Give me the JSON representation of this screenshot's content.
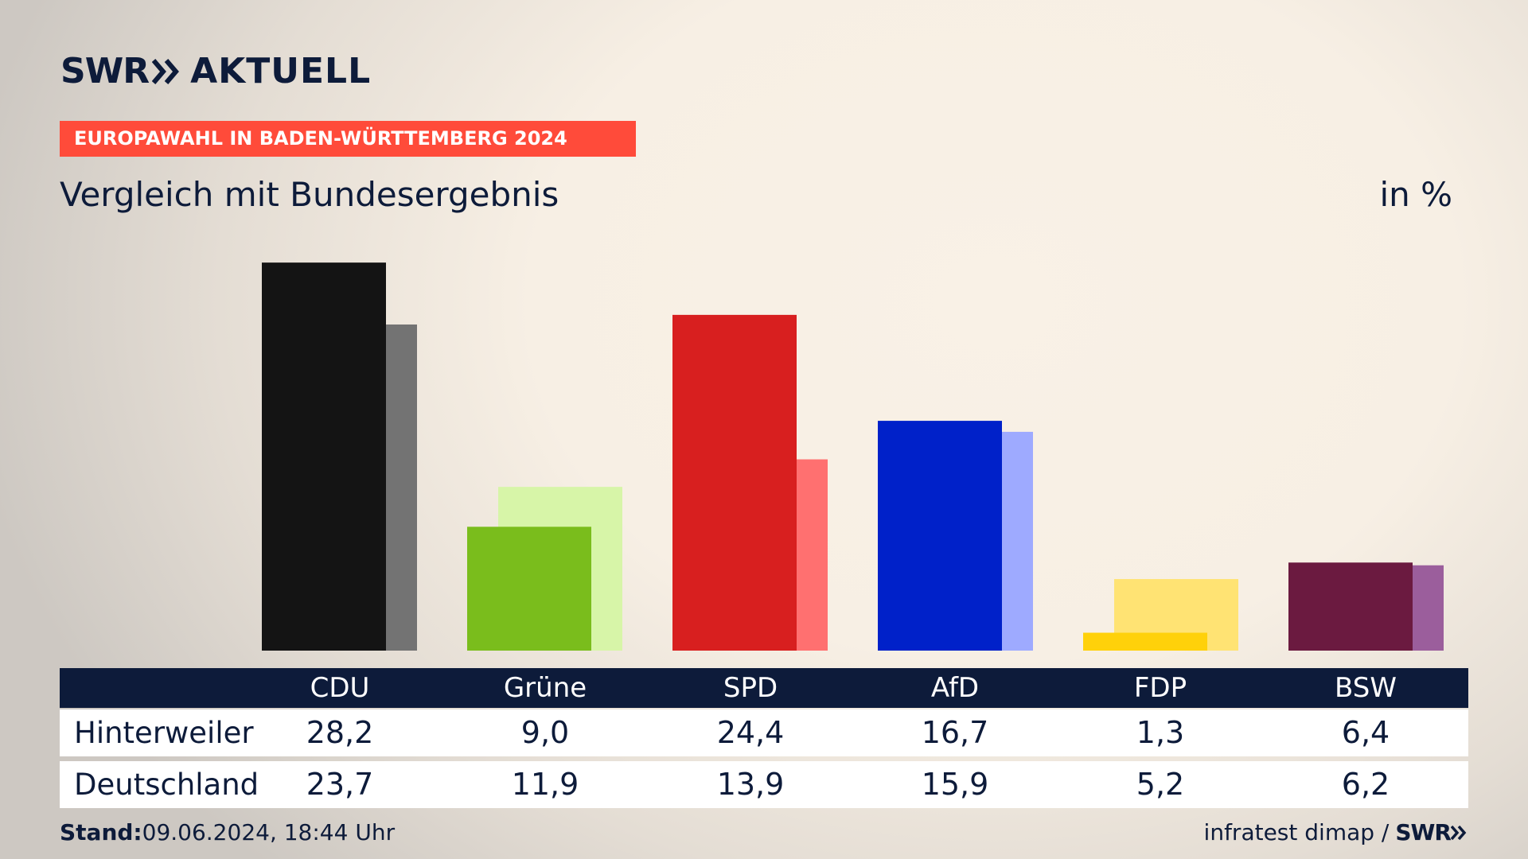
{
  "header": {
    "logo_left": "SWR",
    "logo_right": "AKTUELL",
    "tag": "EUROPAWAHL IN BADEN-WÜRTTEMBERG 2024",
    "subtitle": "Vergleich mit Bundesergebnis",
    "unit": "in %"
  },
  "table": {
    "row_labels": [
      "Hinterweiler",
      "Deutschland"
    ],
    "parties": [
      "CDU",
      "Grüne",
      "SPD",
      "AfD",
      "FDP",
      "BSW"
    ],
    "hinterweiler": [
      "28,2",
      "9,0",
      "24,4",
      "16,7",
      "1,3",
      "6,4"
    ],
    "deutschland": [
      "23,7",
      "11,9",
      "13,9",
      "15,9",
      "5,2",
      "6,2"
    ]
  },
  "footer": {
    "stand_label": "Stand:",
    "stand_value": "09.06.2024, 18:44 Uhr",
    "source": "infratest dimap /",
    "source_logo": "SWR"
  },
  "chart_data": {
    "type": "bar",
    "categories": [
      "CDU",
      "Grüne",
      "SPD",
      "AfD",
      "FDP",
      "BSW"
    ],
    "series": [
      {
        "name": "Hinterweiler",
        "values": [
          28.2,
          9.0,
          24.4,
          16.7,
          1.3,
          6.4
        ]
      },
      {
        "name": "Deutschland",
        "values": [
          23.7,
          11.9,
          13.9,
          15.9,
          5.2,
          6.2
        ]
      }
    ],
    "colors": {
      "hinterweiler": [
        "#141414",
        "#7abd1c",
        "#d81f1f",
        "#0021c9",
        "#ffd10a",
        "#6b1a40"
      ],
      "deutschland": [
        "#737373",
        "#d7f5a8",
        "#ff7070",
        "#9eaaff",
        "#ffe373",
        "#9b5e9c"
      ]
    }
  }
}
